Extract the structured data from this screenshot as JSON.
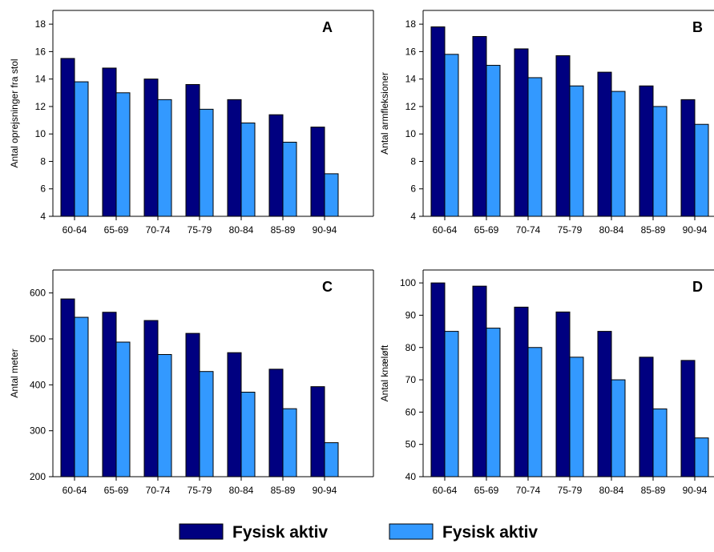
{
  "colors": {
    "series_1": "#000080",
    "series_2": "#3399ff",
    "axis": "#000000"
  },
  "legend": {
    "items": [
      {
        "label": "Fysisk aktiv"
      },
      {
        "label": "Fysisk aktiv"
      }
    ]
  },
  "chart_data": [
    {
      "type": "bar",
      "panel": "A",
      "categories": [
        "60-64",
        "65-69",
        "70-74",
        "75-79",
        "80-84",
        "85-89",
        "90-94"
      ],
      "ylabel": "Antal oprejsninger fra stol",
      "ylim": [
        4,
        19
      ],
      "yticks": [
        "4",
        "6",
        "8",
        "10",
        "12",
        "14",
        "16",
        "18"
      ],
      "series": [
        {
          "values": [
            15.5,
            14.8,
            14.0,
            13.6,
            12.5,
            11.4,
            10.5
          ]
        },
        {
          "values": [
            13.8,
            13.0,
            12.5,
            11.8,
            10.8,
            9.4,
            7.1
          ]
        }
      ]
    },
    {
      "type": "bar",
      "panel": "B",
      "categories": [
        "60-64",
        "65-69",
        "70-74",
        "75-79",
        "80-84",
        "85-89",
        "90-94"
      ],
      "ylabel": "Antal armfleksioner",
      "ylim": [
        4,
        19
      ],
      "yticks": [
        "4",
        "6",
        "8",
        "10",
        "12",
        "14",
        "16",
        "18"
      ],
      "series": [
        {
          "values": [
            17.8,
            17.1,
            16.2,
            15.7,
            14.5,
            13.5,
            12.5
          ]
        },
        {
          "values": [
            15.8,
            15.0,
            14.1,
            13.5,
            13.1,
            12.0,
            10.7
          ]
        }
      ]
    },
    {
      "type": "bar",
      "panel": "C",
      "categories": [
        "60-64",
        "65-69",
        "70-74",
        "75-79",
        "80-84",
        "85-89",
        "90-94"
      ],
      "ylabel": "Antal meter",
      "ylim": [
        200,
        650
      ],
      "yticks": [
        "200",
        "300",
        "400",
        "500",
        "600"
      ],
      "series": [
        {
          "values": [
            587,
            558,
            540,
            512,
            470,
            434,
            396
          ]
        },
        {
          "values": [
            547,
            493,
            466,
            429,
            384,
            348,
            274
          ]
        }
      ]
    },
    {
      "type": "bar",
      "panel": "D",
      "categories": [
        "60-64",
        "65-69",
        "70-74",
        "75-79",
        "80-84",
        "85-89",
        "90-94"
      ],
      "ylabel": "Antal knæløft",
      "ylim": [
        40,
        104
      ],
      "yticks": [
        "40",
        "50",
        "60",
        "70",
        "80",
        "90",
        "100"
      ],
      "series": [
        {
          "values": [
            100,
            99,
            92.5,
            91,
            85,
            77,
            76
          ]
        },
        {
          "values": [
            85,
            86,
            80,
            77,
            70,
            61,
            52
          ]
        }
      ]
    }
  ]
}
